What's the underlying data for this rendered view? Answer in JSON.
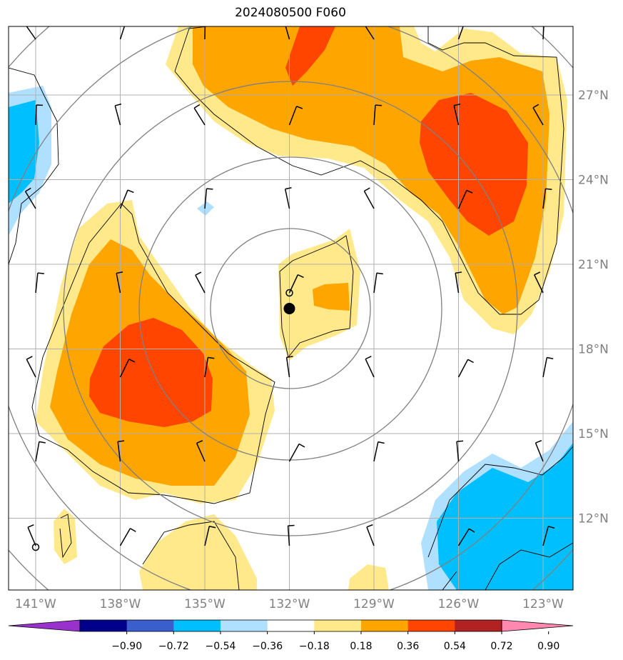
{
  "title": "2024080500 F060",
  "lon_ticks": [
    "141°W",
    "138°W",
    "135°W",
    "132°W",
    "129°W",
    "126°W",
    "123°W"
  ],
  "lat_ticks": [
    "27°N",
    "24°N",
    "21°N",
    "18°N",
    "15°N",
    "12°N"
  ],
  "colorbar": {
    "tick_labels": [
      "−0.90",
      "−0.72",
      "−0.54",
      "−0.36",
      "−0.18",
      "0.18",
      "0.36",
      "0.54",
      "0.72",
      "0.90"
    ],
    "colors": [
      "#9932cc",
      "#00008b",
      "#3a5fcd",
      "#00bfff",
      "#b0e0ff",
      "#ffffff",
      "#ffe98a",
      "#ffa500",
      "#ff4500",
      "#b22222",
      "#ff88b0"
    ]
  },
  "colors": {
    "grid": "#b0b0b0",
    "range_ring": "#808080",
    "coast": "#000000",
    "tick_label": "#808080"
  },
  "center_marker": {
    "lon": -132.0,
    "lat": 19.5
  },
  "small_markers": [
    {
      "lon": -132.0,
      "lat": 20.0
    },
    {
      "lon": -141.0,
      "lat": 11.0
    }
  ]
}
